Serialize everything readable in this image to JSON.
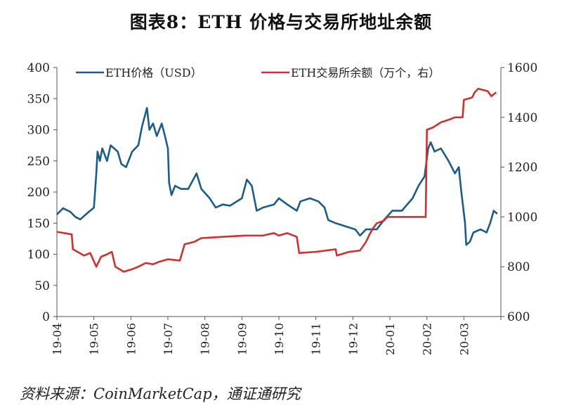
{
  "chart_data": {
    "type": "line",
    "title": "图表8：ETH 价格与交易所地址余额",
    "source": "资料来源：CoinMarketCap，通证通研究",
    "x_ticks": [
      "19-04",
      "19-05",
      "19-06",
      "19-07",
      "19-08",
      "19-09",
      "19-10",
      "19-11",
      "19-12",
      "20-01",
      "20-02",
      "20-03"
    ],
    "y_left": {
      "min": 0,
      "max": 400,
      "ticks": [
        0,
        50,
        100,
        150,
        200,
        250,
        300,
        350,
        400
      ]
    },
    "y_right": {
      "min": 600,
      "max": 1600,
      "ticks": [
        600,
        800,
        1000,
        1200,
        1400,
        1600
      ]
    },
    "grid": false,
    "legend_position": "top",
    "series": [
      {
        "name": "ETH价格（USD）",
        "axis": "left",
        "color": "#1a5c8a",
        "points": [
          [
            "2019-04-01",
            164
          ],
          [
            "2019-04-06",
            174
          ],
          [
            "2019-04-12",
            168
          ],
          [
            "2019-04-16",
            160
          ],
          [
            "2019-04-20",
            156
          ],
          [
            "2019-04-25",
            165
          ],
          [
            "2019-04-28",
            170
          ],
          [
            "2019-05-01",
            175
          ],
          [
            "2019-05-03",
            230
          ],
          [
            "2019-05-04",
            265
          ],
          [
            "2019-05-06",
            250
          ],
          [
            "2019-05-08",
            270
          ],
          [
            "2019-05-12",
            250
          ],
          [
            "2019-05-15",
            275
          ],
          [
            "2019-05-21",
            265
          ],
          [
            "2019-05-24",
            245
          ],
          [
            "2019-05-28",
            240
          ],
          [
            "2019-06-02",
            265
          ],
          [
            "2019-06-07",
            275
          ],
          [
            "2019-06-10",
            305
          ],
          [
            "2019-06-14",
            335
          ],
          [
            "2019-06-16",
            300
          ],
          [
            "2019-06-19",
            310
          ],
          [
            "2019-06-22",
            290
          ],
          [
            "2019-06-26",
            310
          ],
          [
            "2019-06-28",
            295
          ],
          [
            "2019-07-01",
            270
          ],
          [
            "2019-07-02",
            215
          ],
          [
            "2019-07-04",
            195
          ],
          [
            "2019-07-07",
            210
          ],
          [
            "2019-07-12",
            205
          ],
          [
            "2019-07-18",
            205
          ],
          [
            "2019-07-25",
            230
          ],
          [
            "2019-07-29",
            205
          ],
          [
            "2019-08-05",
            190
          ],
          [
            "2019-08-10",
            175
          ],
          [
            "2019-08-16",
            180
          ],
          [
            "2019-08-22",
            178
          ],
          [
            "2019-09-01",
            190
          ],
          [
            "2019-09-05",
            220
          ],
          [
            "2019-09-09",
            210
          ],
          [
            "2019-09-13",
            170
          ],
          [
            "2019-09-18",
            175
          ],
          [
            "2019-09-27",
            180
          ],
          [
            "2019-10-01",
            190
          ],
          [
            "2019-10-08",
            180
          ],
          [
            "2019-10-16",
            170
          ],
          [
            "2019-10-19",
            185
          ],
          [
            "2019-10-27",
            190
          ],
          [
            "2019-11-03",
            185
          ],
          [
            "2019-11-08",
            175
          ],
          [
            "2019-11-11",
            155
          ],
          [
            "2019-11-17",
            150
          ],
          [
            "2019-11-25",
            145
          ],
          [
            "2019-12-03",
            140
          ],
          [
            "2019-12-07",
            130
          ],
          [
            "2019-12-12",
            140
          ],
          [
            "2019-12-21",
            140
          ],
          [
            "2019-12-27",
            155
          ],
          [
            "2020-01-03",
            170
          ],
          [
            "2020-01-11",
            170
          ],
          [
            "2020-01-20",
            190
          ],
          [
            "2020-01-25",
            210
          ],
          [
            "2020-01-30",
            225
          ],
          [
            "2020-02-02",
            270
          ],
          [
            "2020-02-04",
            280
          ],
          [
            "2020-02-07",
            265
          ],
          [
            "2020-02-12",
            270
          ],
          [
            "2020-02-18",
            250
          ],
          [
            "2020-02-23",
            230
          ],
          [
            "2020-02-26",
            240
          ],
          [
            "2020-02-28",
            200
          ],
          [
            "2020-03-02",
            150
          ],
          [
            "2020-03-03",
            115
          ],
          [
            "2020-03-06",
            120
          ],
          [
            "2020-03-09",
            135
          ],
          [
            "2020-03-15",
            140
          ],
          [
            "2020-03-20",
            135
          ],
          [
            "2020-03-23",
            150
          ],
          [
            "2020-03-26",
            170
          ],
          [
            "2020-03-29",
            165
          ]
        ]
      },
      {
        "name": "ETH交易所余额（万个，右）",
        "axis": "right",
        "color": "#d03030",
        "points": [
          [
            "2019-04-01",
            940
          ],
          [
            "2019-04-13",
            930
          ],
          [
            "2019-04-14",
            870
          ],
          [
            "2019-04-23",
            845
          ],
          [
            "2019-04-28",
            855
          ],
          [
            "2019-05-03",
            800
          ],
          [
            "2019-05-07",
            840
          ],
          [
            "2019-05-12",
            850
          ],
          [
            "2019-05-16",
            860
          ],
          [
            "2019-05-19",
            800
          ],
          [
            "2019-05-26",
            780
          ],
          [
            "2019-06-02",
            790
          ],
          [
            "2019-06-07",
            800
          ],
          [
            "2019-06-13",
            815
          ],
          [
            "2019-06-19",
            810
          ],
          [
            "2019-06-24",
            820
          ],
          [
            "2019-07-01",
            830
          ],
          [
            "2019-07-11",
            825
          ],
          [
            "2019-07-15",
            890
          ],
          [
            "2019-07-23",
            900
          ],
          [
            "2019-07-29",
            915
          ],
          [
            "2019-08-16",
            920
          ],
          [
            "2019-09-03",
            925
          ],
          [
            "2019-09-18",
            925
          ],
          [
            "2019-09-27",
            935
          ],
          [
            "2019-10-01",
            925
          ],
          [
            "2019-10-08",
            935
          ],
          [
            "2019-10-16",
            920
          ],
          [
            "2019-10-18",
            855
          ],
          [
            "2019-11-01",
            860
          ],
          [
            "2019-11-17",
            870
          ],
          [
            "2019-11-18",
            845
          ],
          [
            "2019-11-28",
            860
          ],
          [
            "2019-12-07",
            865
          ],
          [
            "2019-12-12",
            900
          ],
          [
            "2019-12-15",
            930
          ],
          [
            "2019-12-18",
            955
          ],
          [
            "2019-12-21",
            975
          ],
          [
            "2019-12-27",
            985
          ],
          [
            "2019-12-30",
            1000
          ],
          [
            "2020-01-31",
            1000
          ],
          [
            "2020-02-01",
            1350
          ],
          [
            "2020-02-06",
            1360
          ],
          [
            "2020-02-12",
            1380
          ],
          [
            "2020-02-18",
            1390
          ],
          [
            "2020-02-23",
            1400
          ],
          [
            "2020-02-29",
            1400
          ],
          [
            "2020-03-01",
            1470
          ],
          [
            "2020-03-08",
            1480
          ],
          [
            "2020-03-10",
            1500
          ],
          [
            "2020-03-13",
            1515
          ],
          [
            "2020-03-21",
            1505
          ],
          [
            "2020-03-24",
            1485
          ],
          [
            "2020-03-28",
            1500
          ]
        ]
      }
    ]
  }
}
